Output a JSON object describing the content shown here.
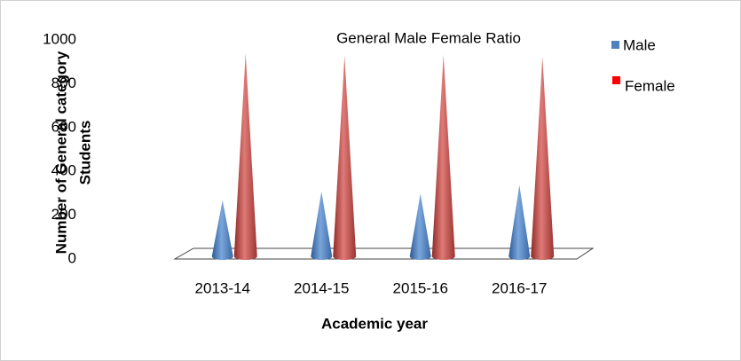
{
  "chart_data": {
    "type": "cone",
    "title": "General Male Female Ratio",
    "x_label": "Academic year",
    "y_label": [
      "Number of General category",
      "Students"
    ],
    "categories": [
      "2013-14",
      "2014-15",
      "2015-16",
      "2016-17"
    ],
    "series": [
      {
        "name": "Male",
        "color": "#4f81bd",
        "values": [
          280,
          320,
          310,
          350
        ]
      },
      {
        "name": "Female",
        "color": "#c0504d",
        "values": [
          950,
          940,
          945,
          935
        ]
      }
    ],
    "ylim": [
      0,
      1000
    ],
    "yticks": [
      0,
      200,
      400,
      600,
      800,
      1000
    ],
    "legend": "right"
  }
}
